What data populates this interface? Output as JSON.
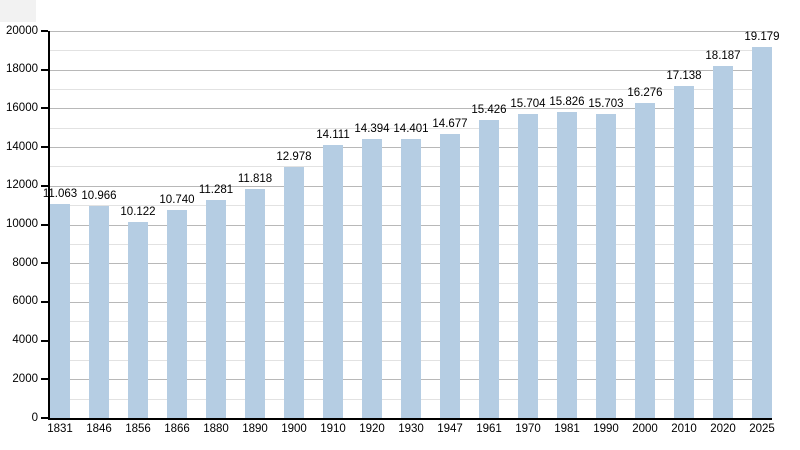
{
  "chart_data": {
    "type": "bar",
    "title": "",
    "xlabel": "",
    "ylabel": "",
    "categories": [
      "1831",
      "1846",
      "1856",
      "1866",
      "1880",
      "1890",
      "1900",
      "1910",
      "1920",
      "1930",
      "1947",
      "1961",
      "1970",
      "1981",
      "1990",
      "2000",
      "2010",
      "2020",
      "2025"
    ],
    "values": [
      11063,
      10966,
      10122,
      10740,
      11281,
      11818,
      12978,
      14111,
      14394,
      14401,
      14677,
      15426,
      15704,
      15826,
      15703,
      16276,
      17138,
      18187,
      19179
    ],
    "value_labels": [
      "11.063",
      "10.966",
      "10.122",
      "10.740",
      "11.281",
      "11.818",
      "12.978",
      "14.111",
      "14.394",
      "14.401",
      "14.677",
      "15.426",
      "15.704",
      "15.826",
      "15.703",
      "16.276",
      "17.138",
      "18.187",
      "19.179"
    ],
    "ylim": [
      0,
      20000
    ],
    "y_major_step": 2000,
    "y_minor_step": 1000,
    "y_tick_labels": [
      "0",
      "2000",
      "4000",
      "6000",
      "8000",
      "10000",
      "12000",
      "14000",
      "16000",
      "18000",
      "20000"
    ],
    "grid": "major and minor horizontal gridlines, drawn behind bars",
    "legend_position": "none",
    "colors": {
      "bar_fill": "#b5cde3",
      "major_grid": "#b8b8b8",
      "minor_grid": "#e2e2e2",
      "axis": "#000000",
      "text": "#000000",
      "background": "#ffffff",
      "corner_artifact": "#f2f2f2"
    }
  }
}
